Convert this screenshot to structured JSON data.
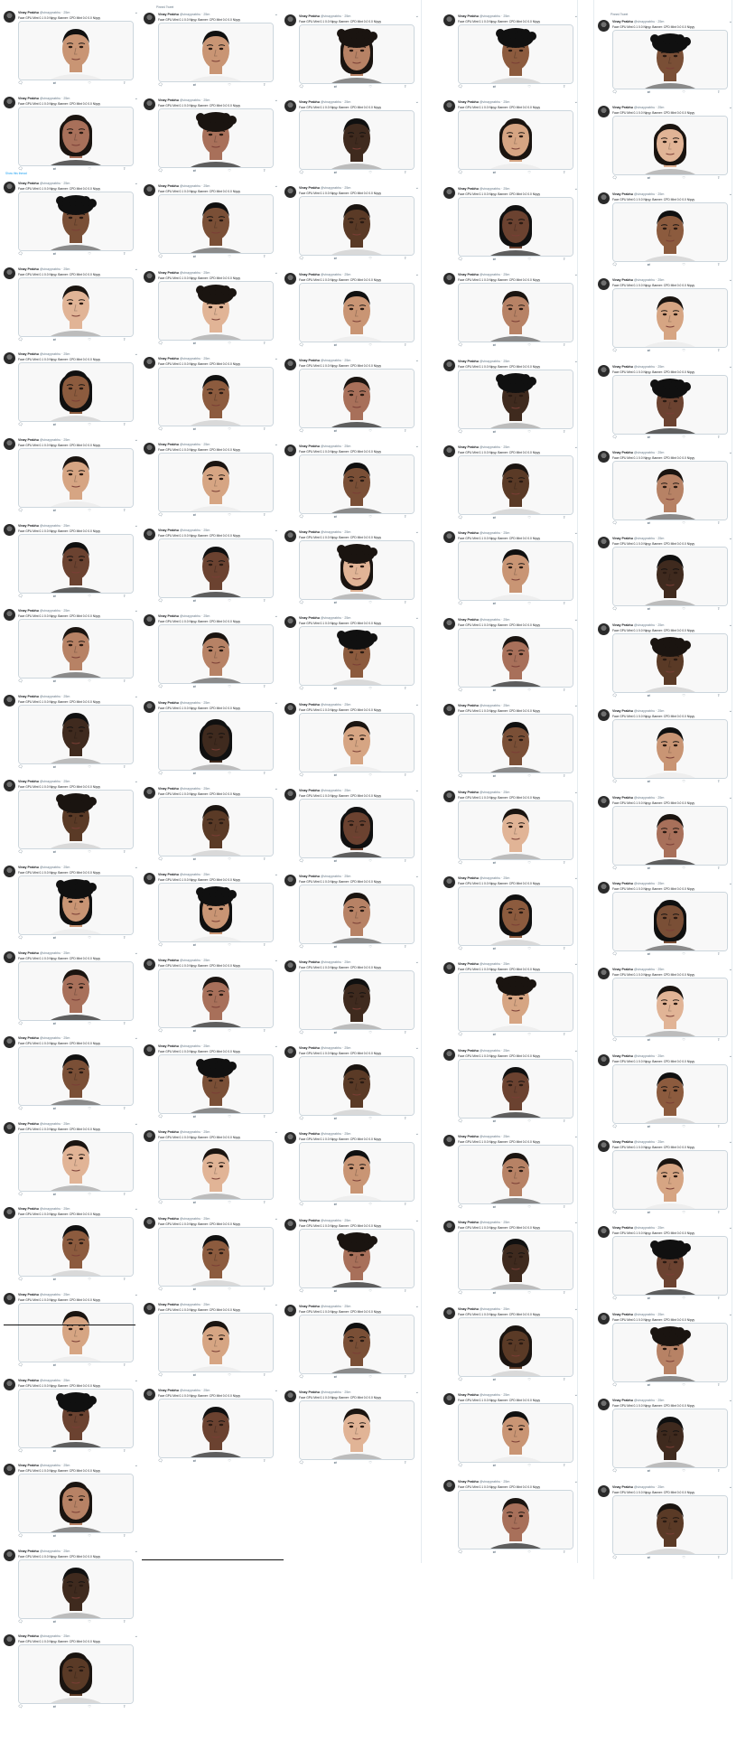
{
  "account": {
    "name": "Vinay Prabhu",
    "handle": "@vinayprabhu",
    "time": "· 25m",
    "pinned_label": "Pinned Tweet",
    "tweet_text": "Face GPU Mint 0.1 0.0 Nipyy. Banner: CPD Mint 0.0 0.0 Nipyy",
    "show_thread": "Show this thread"
  },
  "actions": {
    "reply_icon": "reply-icon",
    "retweet_icon": "retweet-icon",
    "like_icon": "like-icon",
    "share_icon": "share-icon"
  },
  "columns": [
    {
      "column": 1,
      "tweet_count": 20
    },
    {
      "column": 2,
      "tweet_count": 17
    },
    {
      "column": 3,
      "tweet_count": 17
    },
    {
      "column": 4,
      "tweet_count": 18
    },
    {
      "column": 5,
      "tweet_count": 18
    }
  ],
  "colors": {
    "accent": "#1da1f2",
    "muted": "#657786",
    "border": "#ccd6dd"
  }
}
